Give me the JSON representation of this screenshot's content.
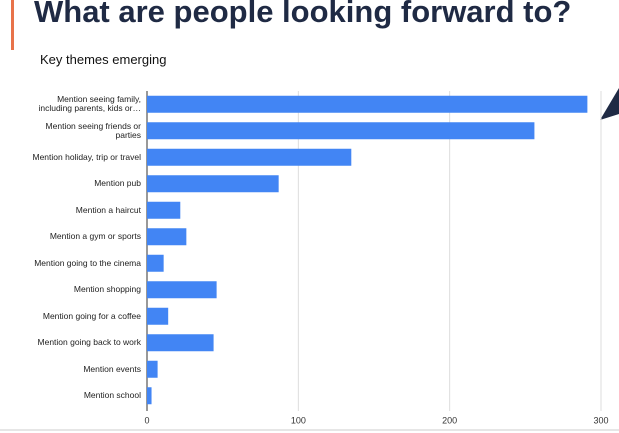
{
  "chart_data": {
    "type": "bar",
    "orientation": "horizontal",
    "title": "What are people looking forward to?",
    "subtitle": "Key themes emerging",
    "categories": [
      "Mention seeing family, including parents, kids or…",
      "Mention seeing friends or parties",
      "Mention holiday, trip or travel",
      "Mention pub",
      "Mention a haircut",
      "Mention a gym or sports",
      "Mention going to the cinema",
      "Mention shopping",
      "Mention going for a coffee",
      "Mention going back to work",
      "Mention events",
      "Mention school"
    ],
    "values": [
      291,
      256,
      135,
      87,
      22,
      26,
      11,
      46,
      14,
      44,
      7,
      3
    ],
    "color": "#4285f4",
    "xlim": [
      0,
      300
    ],
    "xticks": [
      0,
      100,
      200,
      300
    ],
    "grid": true
  }
}
